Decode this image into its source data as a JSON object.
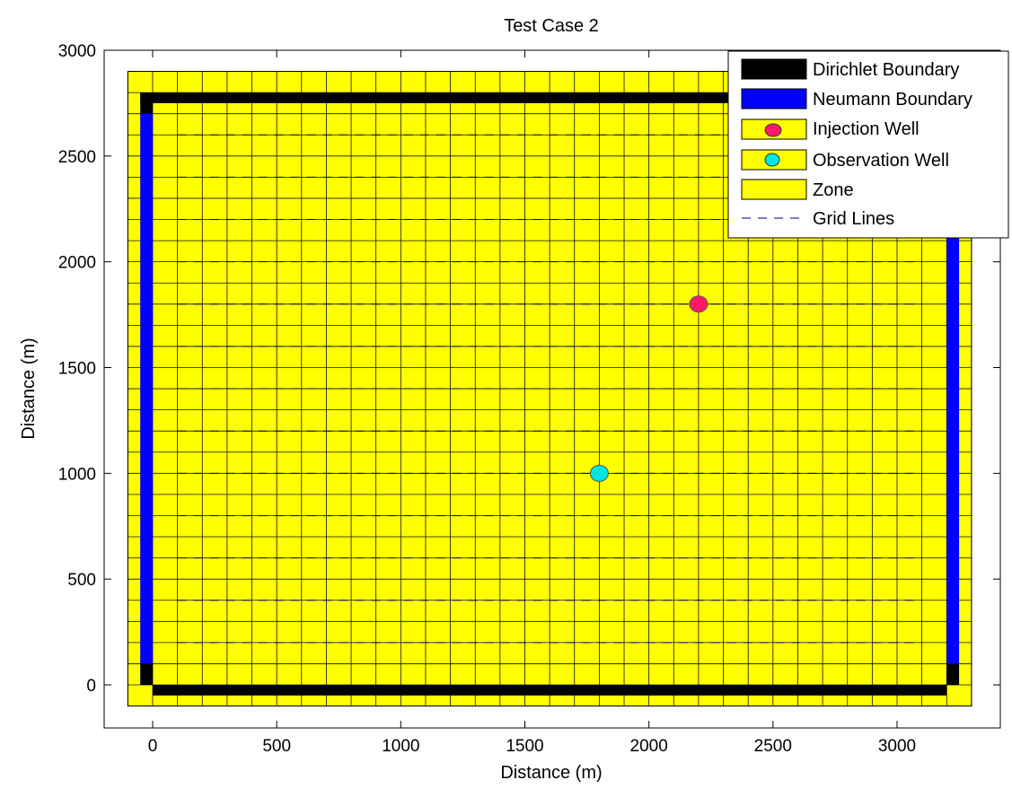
{
  "chart_data": {
    "type": "scatter",
    "title": "Test Case 2",
    "xlabel": "Distance (m)",
    "ylabel": "Distance (m)",
    "xlim": [
      -200,
      3400
    ],
    "ylim": [
      -200,
      3000
    ],
    "xticks": [
      0,
      500,
      1000,
      1500,
      2000,
      2500,
      3000
    ],
    "yticks": [
      0,
      500,
      1000,
      1500,
      2000,
      2500,
      3000
    ],
    "grid": false,
    "legend_position": "top-right",
    "zone": {
      "name": "Zone",
      "x": [
        -100,
        3300
      ],
      "y": [
        -100,
        2900
      ],
      "color": "#ffff00"
    },
    "cells": {
      "x_spacing": 100,
      "y_spacing": 200,
      "x_offset": 0,
      "y_offset": 0
    },
    "dashed_grid": {
      "x_range": [
        100,
        3100
      ],
      "y_range": [
        200,
        2600
      ],
      "y_spacing": 200,
      "x_spacing": 100
    },
    "dirichlet_boundary": {
      "name": "Dirichlet Boundary",
      "color": "#000000",
      "segments": [
        {
          "x": [
            -50,
            3200
          ],
          "y": [
            2750,
            2800
          ]
        },
        {
          "x": [
            0,
            3200
          ],
          "y": [
            -50,
            0
          ]
        },
        {
          "x": [
            -50,
            0
          ],
          "y": [
            2700,
            2800
          ]
        },
        {
          "x": [
            -50,
            0
          ],
          "y": [
            0,
            100
          ]
        },
        {
          "x": [
            3200,
            3250
          ],
          "y": [
            0,
            100
          ]
        }
      ]
    },
    "neumann_boundary": {
      "name": "Neumann Boundary",
      "color": "#0000ff",
      "segments": [
        {
          "x": [
            -50,
            0
          ],
          "y": [
            100,
            2700
          ]
        },
        {
          "x": [
            3200,
            3250
          ],
          "y": [
            100,
            2600
          ]
        }
      ]
    },
    "series": [
      {
        "name": "Injection Well",
        "x": [
          2200
        ],
        "y": [
          1800
        ],
        "color": "#ff1a66"
      },
      {
        "name": "Observation Well",
        "x": [
          1800
        ],
        "y": [
          1000
        ],
        "color": "#00e6e6"
      }
    ],
    "legend": [
      "Dirichlet Boundary",
      "Neumann Boundary",
      "Injection Well",
      "Observation Well",
      "Zone",
      "Grid Lines"
    ]
  }
}
